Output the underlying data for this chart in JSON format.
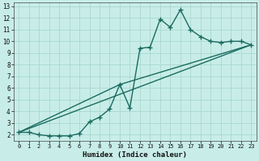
{
  "title": "",
  "xlabel": "Humidex (Indice chaleur)",
  "ylabel": "",
  "bg_color": "#c8ede8",
  "grid_color": "#a8d8d0",
  "line_color": "#1a6b60",
  "xlim_min": -0.5,
  "xlim_max": 23.5,
  "ylim_min": 1.5,
  "ylim_max": 13.3,
  "xticks": [
    0,
    1,
    2,
    3,
    4,
    5,
    6,
    7,
    8,
    9,
    10,
    11,
    12,
    13,
    14,
    15,
    16,
    17,
    18,
    19,
    20,
    21,
    22,
    23
  ],
  "yticks": [
    2,
    3,
    4,
    5,
    6,
    7,
    8,
    9,
    10,
    11,
    12,
    13
  ],
  "series1_x": [
    0,
    1,
    2,
    3,
    4,
    5,
    6,
    7,
    8,
    9,
    10,
    11,
    12,
    13,
    14,
    15,
    16,
    17,
    18,
    19,
    20,
    21,
    22,
    23
  ],
  "series1_y": [
    2.2,
    2.2,
    2.0,
    1.9,
    1.9,
    1.9,
    2.1,
    3.1,
    3.5,
    4.2,
    6.3,
    4.3,
    9.4,
    9.5,
    11.9,
    11.2,
    12.7,
    11.0,
    10.4,
    10.0,
    9.9,
    10.0,
    10.0,
    9.7
  ],
  "series2_x": [
    0,
    23
  ],
  "series2_y": [
    2.2,
    9.7
  ],
  "series3_x": [
    0,
    10,
    23
  ],
  "series3_y": [
    2.2,
    6.3,
    9.7
  ],
  "linewidth": 1.0,
  "marker_size": 4.5
}
